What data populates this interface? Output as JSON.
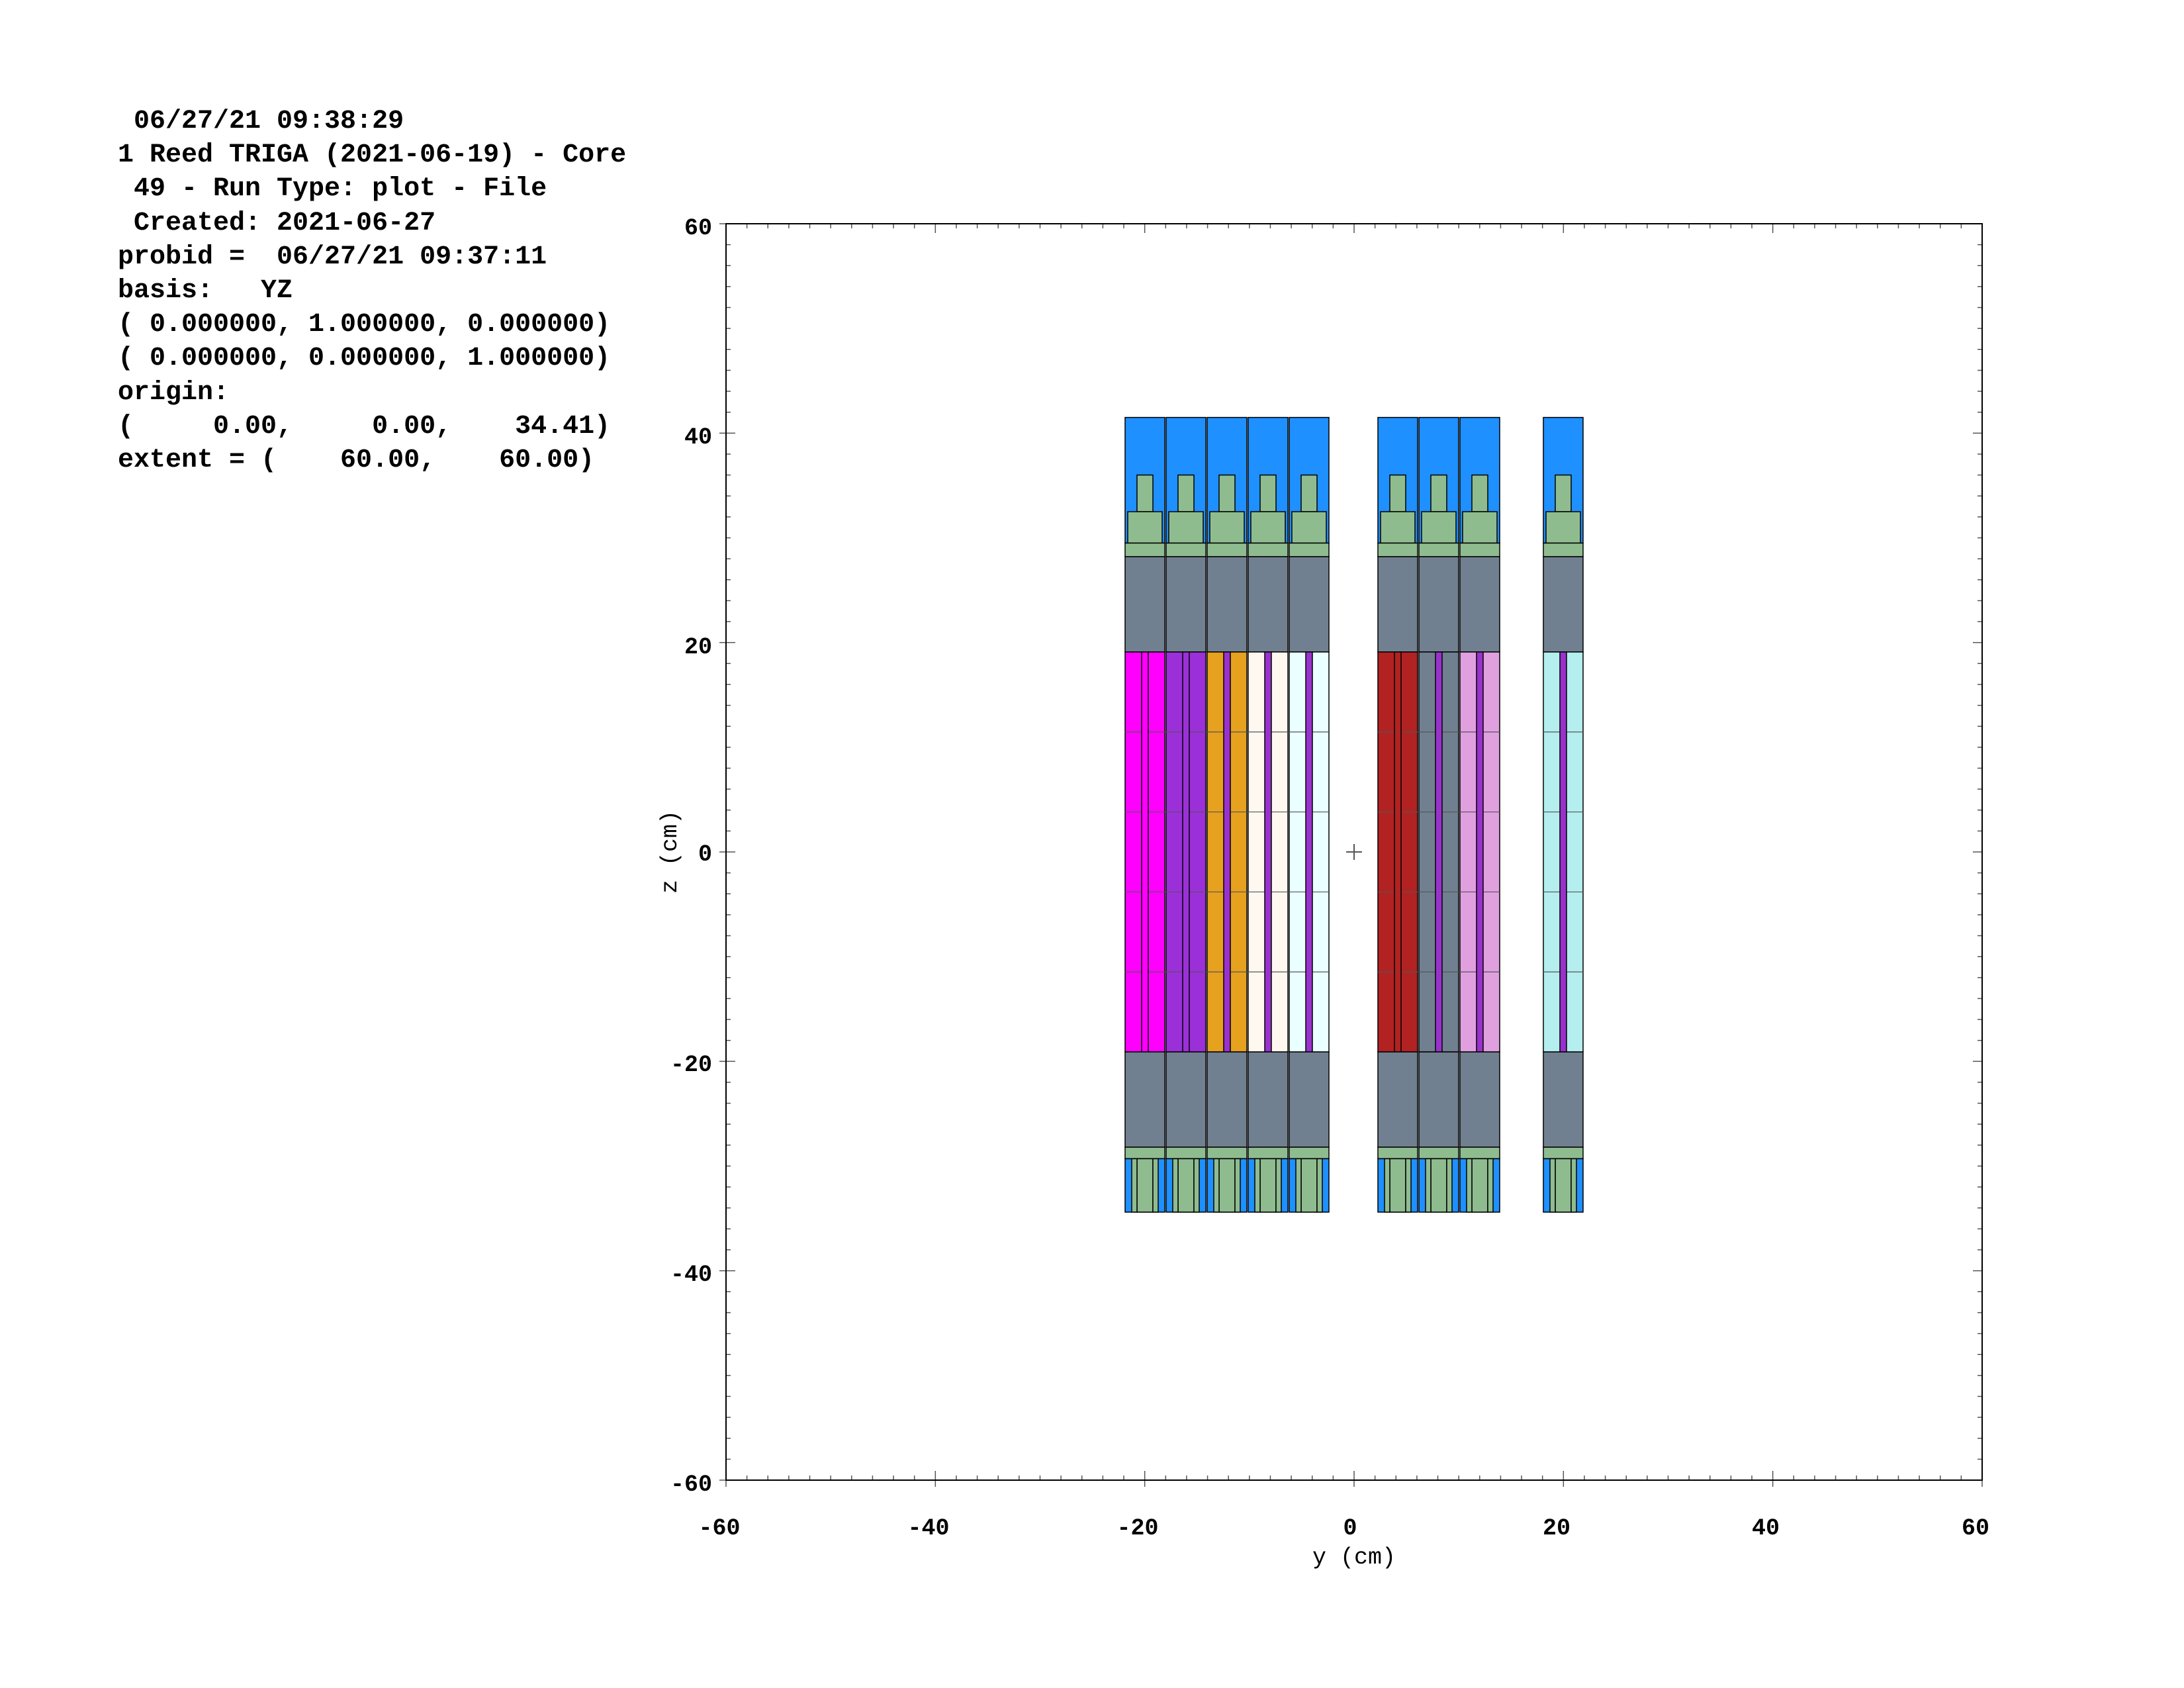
{
  "header": {
    "lines": [
      " 06/27/21 09:38:29",
      "1 Reed TRIGA (2021-06-19) - Core",
      " 49 - Run Type: plot - File",
      " Created: 2021-06-27",
      "probid =  06/27/21 09:37:11",
      "basis:   YZ",
      "( 0.000000, 1.000000, 0.000000)",
      "( 0.000000, 0.000000, 1.000000)",
      "origin:",
      "(     0.00,     0.00,    34.41)",
      "extent = (    60.00,    60.00)"
    ]
  },
  "plot": {
    "basis": "YZ",
    "x_axis": {
      "label": "y (cm)",
      "range": [
        -60,
        60
      ],
      "ticks": [
        "-60",
        "-40",
        "-20",
        "0",
        "20",
        "40",
        "60"
      ]
    },
    "y_axis": {
      "label": "z (cm)",
      "range": [
        -60,
        60
      ],
      "ticks": [
        "60",
        "40",
        "20",
        "0",
        "-20",
        "-40",
        "-60"
      ]
    },
    "origin_marker": "+",
    "colors": {
      "coolant": "#1e90ff",
      "end_fitting": "#8fbc8f",
      "reflector": "#708090",
      "rod_magenta": "#ff00ff",
      "rod_purple": "#9b30d9",
      "rod_orange": "#e6a11f",
      "rod_white": "#fff8f0",
      "rod_white_cyan": "#eaffff",
      "rod_darkred": "#b22222",
      "rod_pink": "#e0a0e0",
      "rod_lightcyan": "#b4eeee",
      "zr_rod": "#9932cc"
    },
    "columns": [
      {
        "fuel": "rod_magenta",
        "center": "rod_magenta"
      },
      {
        "fuel": "rod_purple",
        "center": "rod_purple"
      },
      {
        "fuel": "rod_orange",
        "center": "zr_rod"
      },
      {
        "fuel": "rod_white",
        "center": "zr_rod"
      },
      {
        "fuel": "rod_white_cyan",
        "center": "zr_rod"
      },
      {
        "fuel": "rod_darkred",
        "center": "rod_darkred"
      },
      {
        "fuel": "reflector",
        "center": "zr_rod"
      },
      {
        "fuel": "rod_pink",
        "center": "zr_rod"
      },
      {
        "fuel": "rod_lightcyan",
        "center": "zr_rod"
      }
    ]
  }
}
